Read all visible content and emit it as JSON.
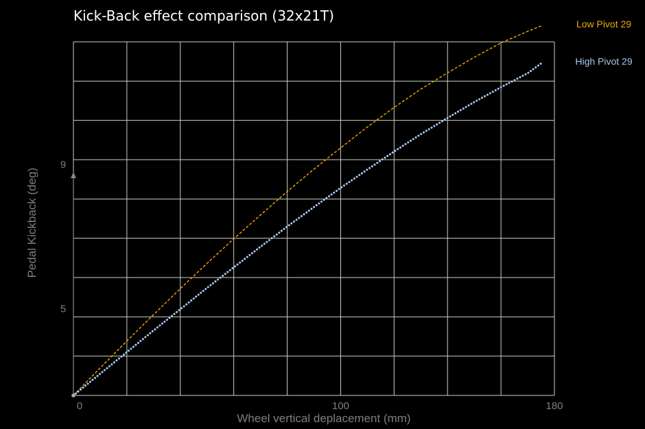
{
  "chart_data": {
    "type": "line",
    "title": "Kick-Back effect comparison (32x21T)",
    "xlabel": "Wheel vertical deplacement (mm)",
    "ylabel": "Pedal Kickback (deg)",
    "xlim": [
      0,
      180
    ],
    "ylim": [
      2.6,
      12.4
    ],
    "x_tick_labels": [
      "0",
      "100",
      "180"
    ],
    "x_tick_values": [
      0,
      100,
      180
    ],
    "y_tick_labels": [
      "5",
      "9"
    ],
    "y_tick_values": [
      5,
      9
    ],
    "grid": true,
    "legend": "right",
    "series": [
      {
        "name": "Low Pivot 29",
        "color": "#F5A800",
        "line_style": "dashed",
        "x": [
          0,
          10,
          20,
          30,
          40,
          50,
          60,
          70,
          80,
          90,
          100,
          110,
          120,
          130,
          140,
          150,
          160,
          170,
          175
        ],
        "y": [
          2.6,
          3.36,
          4.11,
          4.84,
          5.56,
          6.26,
          6.94,
          7.6,
          8.25,
          8.87,
          9.46,
          10.04,
          10.58,
          11.09,
          11.54,
          11.97,
          12.37,
          12.69,
          12.84
        ]
      },
      {
        "name": "High Pivot 29",
        "color": "#A9C8EE",
        "line_style": "dotted",
        "x": [
          0,
          10,
          20,
          30,
          40,
          50,
          60,
          70,
          80,
          90,
          100,
          110,
          120,
          130,
          140,
          150,
          160,
          170,
          175
        ],
        "y": [
          2.6,
          3.2,
          3.8,
          4.4,
          4.99,
          5.58,
          6.15,
          6.72,
          7.28,
          7.82,
          8.35,
          8.86,
          9.36,
          9.84,
          10.29,
          10.73,
          11.14,
          11.53,
          11.8
        ]
      }
    ]
  }
}
